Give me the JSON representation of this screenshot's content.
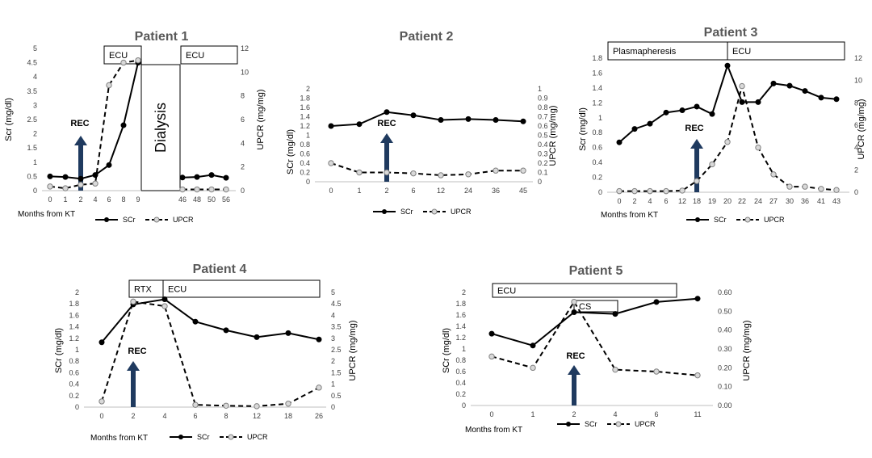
{
  "colors": {
    "line": "#000000",
    "marker_fill_scr": "#000000",
    "marker_fill_upcr": "#d9d9d9",
    "arrow": "#1f3a5f",
    "axis": "#bfbfbf",
    "text": "#404040"
  },
  "chart_data": [
    {
      "type": "line",
      "title": "Patient 1",
      "xlabel": "Months from KT",
      "ylabel_left": "Scr (mg/dl)",
      "ylabel_right": "UPCR (mg/mg)",
      "categories": [
        "0",
        "1",
        "2",
        "4",
        "6",
        "8",
        "9",
        "46",
        "48",
        "50",
        "56"
      ],
      "left_ticks": [
        "0",
        "0.5",
        "1",
        "1.5",
        "2",
        "2.5",
        "3",
        "3.5",
        "4",
        "4.5",
        "5"
      ],
      "right_ticks": [
        "0",
        "2",
        "4",
        "6",
        "8",
        "10",
        "12"
      ],
      "ylim_left": [
        0,
        5
      ],
      "ylim_right": [
        0,
        12
      ],
      "series": [
        {
          "name": "SCr",
          "axis": "left",
          "style": "solid",
          "marker": "filled",
          "values": [
            0.5,
            0.48,
            0.42,
            0.55,
            0.9,
            2.3,
            4.5,
            0.46,
            0.48,
            0.55,
            0.45
          ]
        },
        {
          "name": "UPCR",
          "axis": "right",
          "style": "dashed",
          "marker": "open",
          "values": [
            0.35,
            0.2,
            0.5,
            0.6,
            8.9,
            10.8,
            11.0,
            0.1,
            0.1,
            0.1,
            0.1
          ]
        }
      ],
      "boxes": [
        {
          "label": "ECU"
        },
        {
          "label": "ECU"
        }
      ],
      "dialysis_label": "Dialysis",
      "rec_label": "REC",
      "legend": [
        "SCr",
        "UPCR"
      ]
    },
    {
      "type": "line",
      "title": "Patient 2",
      "xlabel": "",
      "ylabel_left": "SCr (mg/dl)",
      "ylabel_right": "UPCR (mg/mg)",
      "categories": [
        "0",
        "1",
        "2",
        "6",
        "12",
        "24",
        "36",
        "45"
      ],
      "left_ticks": [
        "0",
        "0.2",
        "0.4",
        "0.6",
        "0.8",
        "1",
        "1.2",
        "1.4",
        "1.6",
        "1.8",
        "2"
      ],
      "right_ticks": [
        "0",
        "0.1",
        "0.2",
        "0.3",
        "0.4",
        "0.5",
        "0.6",
        "0.7",
        "0.8",
        "0.9",
        "1"
      ],
      "ylim_left": [
        0,
        2
      ],
      "ylim_right": [
        0,
        1
      ],
      "series": [
        {
          "name": "SCr",
          "axis": "left",
          "style": "solid",
          "marker": "filled",
          "values": [
            1.2,
            1.24,
            1.5,
            1.43,
            1.33,
            1.35,
            1.33,
            1.3
          ]
        },
        {
          "name": "UPCR",
          "axis": "right",
          "style": "dashed",
          "marker": "open",
          "values": [
            0.2,
            0.1,
            0.1,
            0.09,
            0.07,
            0.08,
            0.12,
            0.12
          ]
        }
      ],
      "boxes": [],
      "rec_label": "REC",
      "legend": [
        "SCr",
        "UPCR"
      ]
    },
    {
      "type": "line",
      "title": "Patient 3",
      "xlabel": "Months from KT",
      "ylabel_left": "Scr (mg/dl)",
      "ylabel_right": "UPCR (mg/mg)",
      "categories": [
        "0",
        "2",
        "4",
        "6",
        "12",
        "18",
        "19",
        "20",
        "22",
        "24",
        "27",
        "30",
        "36",
        "41",
        "43"
      ],
      "left_ticks": [
        "0",
        "0.2",
        "0.4",
        "0.6",
        "0.8",
        "1",
        "1.2",
        "1.4",
        "1.6",
        "1.8"
      ],
      "right_ticks": [
        "0",
        "2",
        "4",
        "6",
        "8",
        "10",
        "12"
      ],
      "ylim_left": [
        0,
        1.8
      ],
      "ylim_right": [
        0,
        12
      ],
      "series": [
        {
          "name": "SCr",
          "axis": "left",
          "style": "solid",
          "marker": "filled",
          "values": [
            0.67,
            0.85,
            0.92,
            1.07,
            1.1,
            1.15,
            1.05,
            1.7,
            1.21,
            1.21,
            1.46,
            1.43,
            1.36,
            1.27,
            1.25
          ]
        },
        {
          "name": "UPCR",
          "axis": "right",
          "style": "dashed",
          "marker": "open",
          "values": [
            0.1,
            0.1,
            0.1,
            0.1,
            0.15,
            1.0,
            2.5,
            4.5,
            9.5,
            4.0,
            1.6,
            0.5,
            0.5,
            0.3,
            0.2
          ]
        }
      ],
      "boxes": [
        {
          "label": "Plasmapheresis"
        },
        {
          "label": "ECU"
        }
      ],
      "rec_label": "REC",
      "legend": [
        "SCr",
        "UPCR"
      ]
    },
    {
      "type": "line",
      "title": "Patient 4",
      "xlabel": "Months from KT",
      "ylabel_left": "SCr (mg/dl)",
      "ylabel_right": "UPCR (mg/mg)",
      "categories": [
        "0",
        "2",
        "4",
        "6",
        "8",
        "12",
        "18",
        "26"
      ],
      "left_ticks": [
        "0",
        "0.2",
        "0.4",
        "0.6",
        "0.8",
        "1",
        "1.2",
        "1.4",
        "1.6",
        "1.8",
        "2"
      ],
      "right_ticks": [
        "0",
        "0.5",
        "1",
        "1.5",
        "2",
        "2.5",
        "3",
        "3.5",
        "4",
        "4.5",
        "5"
      ],
      "ylim_left": [
        0,
        2
      ],
      "ylim_right": [
        0,
        5
      ],
      "series": [
        {
          "name": "SCr",
          "axis": "left",
          "style": "solid",
          "marker": "filled",
          "values": [
            1.13,
            1.79,
            1.88,
            1.49,
            1.34,
            1.22,
            1.29,
            1.18
          ]
        },
        {
          "name": "UPCR",
          "axis": "right",
          "style": "dashed",
          "marker": "open",
          "values": [
            0.25,
            4.6,
            4.4,
            0.1,
            0.06,
            0.04,
            0.15,
            0.85
          ]
        }
      ],
      "boxes": [
        {
          "label": "RTX"
        },
        {
          "label": "ECU"
        }
      ],
      "rec_label": "REC",
      "legend": [
        "SCr",
        "UPCR"
      ]
    },
    {
      "type": "line",
      "title": "Patient 5",
      "xlabel": "Months from KT",
      "ylabel_left": "SCr (mg/dl)",
      "ylabel_right": "UPCR (mg/mg)",
      "categories": [
        "0",
        "1",
        "2",
        "4",
        "6",
        "11"
      ],
      "left_ticks": [
        "0",
        "0.2",
        "0.4",
        "0.6",
        "0.8",
        "1",
        "1.2",
        "1.4",
        "1.6",
        "1.8",
        "2"
      ],
      "right_ticks": [
        "0.00",
        "0.10",
        "0.20",
        "0.30",
        "0.40",
        "0.50",
        "0.60"
      ],
      "ylim_left": [
        0,
        2
      ],
      "ylim_right": [
        0,
        0.6
      ],
      "series": [
        {
          "name": "SCr",
          "axis": "left",
          "style": "solid",
          "marker": "filled",
          "values": [
            1.27,
            1.06,
            1.65,
            1.62,
            1.83,
            1.89
          ]
        },
        {
          "name": "UPCR",
          "axis": "right",
          "style": "dashed",
          "marker": "open",
          "values": [
            0.26,
            0.2,
            0.55,
            0.19,
            0.18,
            0.16
          ]
        }
      ],
      "boxes": [
        {
          "label": "ECU"
        },
        {
          "label": "CS"
        }
      ],
      "rec_label": "REC",
      "legend": [
        "SCr",
        "UPCR"
      ]
    }
  ]
}
